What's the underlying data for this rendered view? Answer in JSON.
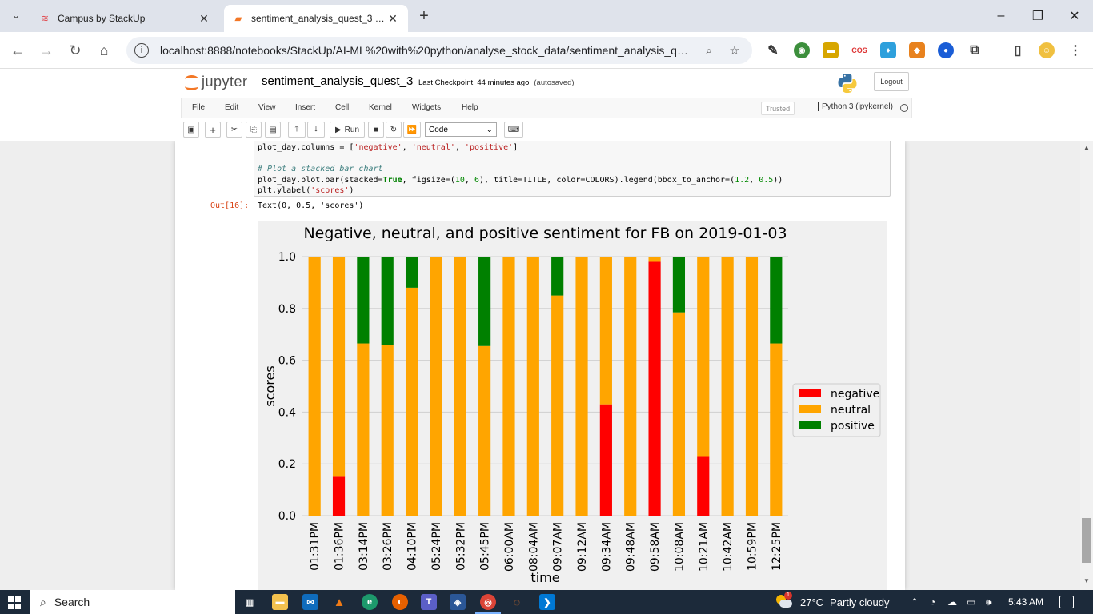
{
  "browser": {
    "tabs": [
      {
        "title": "Campus by StackUp",
        "close": "✕"
      },
      {
        "title": "sentiment_analysis_quest_3 - Ju",
        "close": "✕"
      }
    ],
    "new_tab": "+",
    "url": "localhost:8888/notebooks/StackUp/AI-ML%20with%20python/analyse_stock_data/sentiment_analysis_quest..."
  },
  "jupyter": {
    "logo_text": "jupyter",
    "notebook_name": "sentiment_analysis_quest_3",
    "checkpoint": "Last Checkpoint: 44 minutes ago",
    "autosave": "(autosaved)",
    "logout": "Logout",
    "menu": [
      "File",
      "Edit",
      "View",
      "Insert",
      "Cell",
      "Kernel",
      "Widgets",
      "Help"
    ],
    "trusted": "Trusted",
    "kernel": "Python 3 (ipykernel)",
    "run_label": "Run",
    "cell_type": "Code"
  },
  "cell": {
    "code_lines": [
      "plot_day.columns = ['negative', 'neutral', 'positive']",
      "",
      "# Plot a stacked bar chart",
      "plot_day.plot.bar(stacked=True, figsize=(10, 6), title=TITLE, color=COLORS).legend(bbox_to_anchor=(1.2, 0.5))",
      "plt.ylabel('scores')"
    ],
    "out_prompt": "Out[16]:",
    "out_text": "Text(0, 0.5, 'scores')"
  },
  "chart_data": {
    "type": "bar",
    "stacked": true,
    "title": "Negative, neutral, and positive sentiment for FB on 2019-01-03",
    "xlabel": "time",
    "ylabel": "scores",
    "ylim": [
      0,
      1.0
    ],
    "yticks": [
      0.0,
      0.2,
      0.4,
      0.6,
      0.8,
      1.0
    ],
    "grid": true,
    "legend_position": "right",
    "categories": [
      "01:31PM",
      "01:36PM",
      "03:14PM",
      "03:26PM",
      "04:10PM",
      "05:24PM",
      "05:32PM",
      "05:45PM",
      "06:00AM",
      "08:04AM",
      "09:07AM",
      "09:12AM",
      "09:34AM",
      "09:48AM",
      "09:58AM",
      "10:08AM",
      "10:21AM",
      "10:42AM",
      "10:59PM",
      "12:25PM"
    ],
    "series": [
      {
        "name": "negative",
        "color": "#ff0000",
        "values": [
          0.0,
          0.15,
          0.0,
          0.0,
          0.0,
          0.0,
          0.0,
          0.0,
          0.0,
          0.0,
          0.0,
          0.0,
          0.43,
          0.0,
          0.98,
          0.0,
          0.23,
          0.0,
          0.0,
          0.0
        ]
      },
      {
        "name": "neutral",
        "color": "#ffa500",
        "values": [
          1.0,
          0.85,
          0.665,
          0.66,
          0.88,
          1.0,
          1.0,
          0.655,
          1.0,
          1.0,
          0.85,
          1.0,
          0.57,
          1.0,
          0.02,
          0.785,
          0.77,
          1.0,
          1.0,
          0.665
        ]
      },
      {
        "name": "positive",
        "color": "#008000",
        "values": [
          0.0,
          0.0,
          0.335,
          0.34,
          0.12,
          0.0,
          0.0,
          0.345,
          0.0,
          0.0,
          0.15,
          0.0,
          0.0,
          0.0,
          0.0,
          0.215,
          0.0,
          0.0,
          0.0,
          0.335
        ]
      }
    ]
  },
  "taskbar": {
    "search": "Search",
    "weather_temp": "27°C",
    "weather_desc": "Partly cloudy",
    "weather_badge": "1",
    "time": "5:43 AM"
  }
}
